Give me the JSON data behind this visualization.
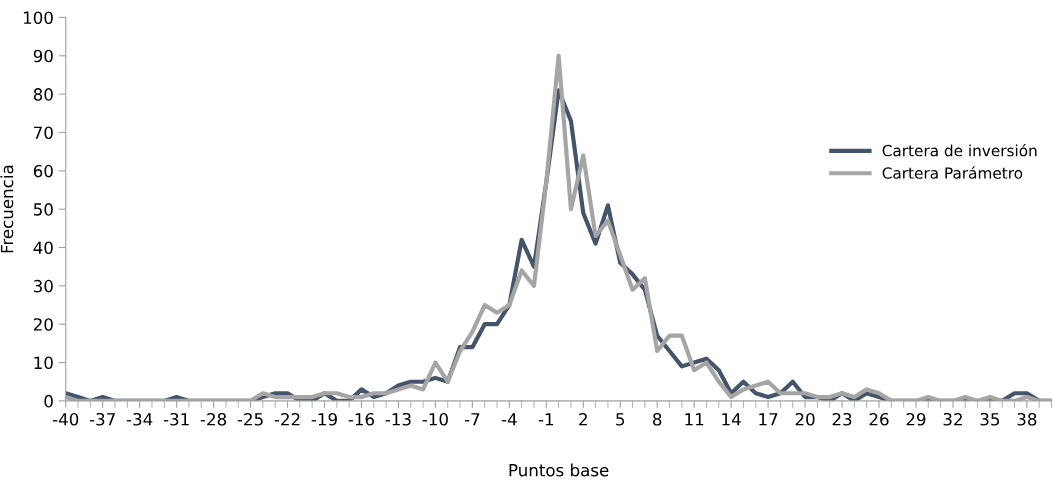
{
  "chart_data": {
    "type": "line",
    "xlabel": "Puntos base",
    "ylabel": "Frecuencia",
    "categories": [
      "-40",
      null,
      null,
      "-37",
      null,
      null,
      "-34",
      null,
      null,
      "-31",
      null,
      null,
      "-28",
      null,
      null,
      "-25",
      null,
      null,
      "-22",
      null,
      null,
      "-19",
      null,
      null,
      "-16",
      null,
      null,
      "-13",
      null,
      null,
      "-10",
      null,
      null,
      "-7",
      null,
      null,
      "-4",
      null,
      null,
      "-1",
      null,
      null,
      "2",
      null,
      null,
      "5",
      null,
      null,
      "8",
      null,
      null,
      "11",
      null,
      null,
      "14",
      null,
      null,
      "17",
      null,
      null,
      "20",
      null,
      null,
      "23",
      null,
      null,
      "26",
      null,
      null,
      "29",
      null,
      null,
      "32",
      null,
      null,
      "35",
      null,
      null,
      "38",
      null,
      null
    ],
    "series": [
      {
        "name": "Cartera de inversión",
        "color": "#44546a",
        "values": [
          2,
          1,
          0,
          1,
          0,
          0,
          0,
          0,
          0,
          1,
          0,
          0,
          0,
          0,
          0,
          0,
          1,
          2,
          2,
          0,
          0,
          2,
          0,
          0,
          3,
          1,
          2,
          4,
          5,
          5,
          6,
          5,
          14,
          14,
          20,
          20,
          25,
          42,
          35,
          57,
          81,
          73,
          49,
          41,
          51,
          36,
          33,
          29,
          17,
          13,
          9,
          10,
          11,
          8,
          2,
          5,
          2,
          1,
          2,
          5,
          1,
          1,
          0,
          2,
          0,
          2,
          1,
          0,
          0,
          0,
          0,
          0,
          0,
          0,
          0,
          0,
          0,
          2,
          2,
          0,
          0
        ]
      },
      {
        "name": "Cartera Parámetro",
        "color": "#a5a5a5",
        "values": [
          1,
          0,
          0,
          0,
          0,
          0,
          0,
          0,
          0,
          0,
          0,
          0,
          0,
          0,
          0,
          0,
          2,
          1,
          1,
          1,
          1,
          2,
          2,
          1,
          1,
          2,
          2,
          3,
          4,
          3,
          10,
          5,
          13,
          18,
          25,
          23,
          25,
          34,
          30,
          57,
          90,
          50,
          64,
          43,
          47,
          38,
          29,
          32,
          13,
          17,
          17,
          8,
          10,
          5,
          1,
          3,
          4,
          5,
          2,
          2,
          2,
          1,
          1,
          2,
          1,
          3,
          2,
          0,
          0,
          0,
          1,
          0,
          0,
          1,
          0,
          1,
          0,
          0,
          1,
          0,
          0
        ]
      }
    ],
    "ylim": [
      0,
      100
    ],
    "yticks": [
      0,
      10,
      20,
      30,
      40,
      50,
      60,
      70,
      80,
      90,
      100
    ],
    "grid": false,
    "legend": "right",
    "marker": "none",
    "line_style": "solid"
  }
}
